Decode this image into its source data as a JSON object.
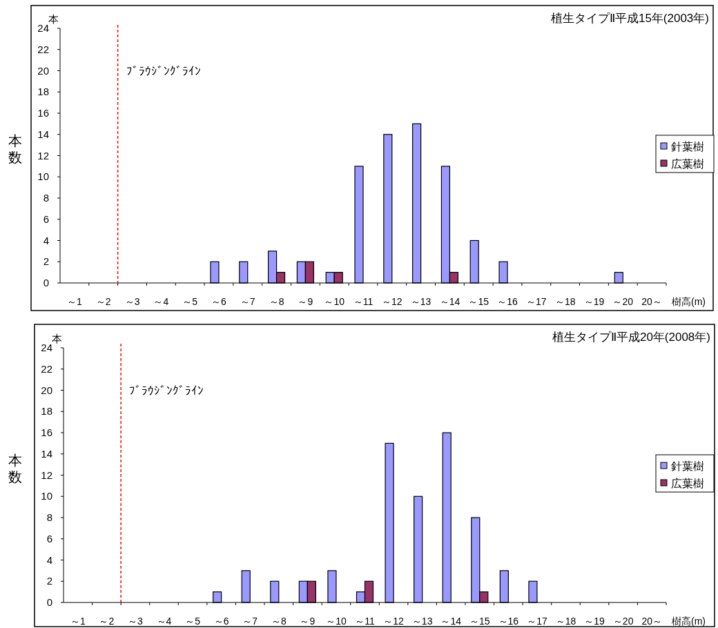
{
  "chart_data": [
    {
      "type": "bar",
      "title": "植生タイプⅡ平成15年(2003年)",
      "ylabel": "本数",
      "xlabel": "樹高(m)",
      "annotations": [
        "本"
      ],
      "categories": [
        "～1",
        "～2",
        "～3",
        "～4",
        "～5",
        "～6",
        "～7",
        "～8",
        "～9",
        "～10",
        "～11",
        "～12",
        "～13",
        "～14",
        "～15",
        "～16",
        "～17",
        "～18",
        "～19",
        "～20",
        "20～"
      ],
      "series": [
        {
          "name": "針葉樹",
          "color": "#9999ff",
          "values": [
            0,
            0,
            0,
            0,
            0,
            2,
            2,
            3,
            2,
            1,
            11,
            14,
            15,
            11,
            4,
            2,
            0,
            0,
            0,
            1,
            0
          ]
        },
        {
          "name": "広葉樹",
          "color": "#993366",
          "values": [
            0,
            0,
            0,
            0,
            0,
            0,
            0,
            1,
            2,
            1,
            0,
            0,
            0,
            1,
            0,
            0,
            0,
            0,
            0,
            0,
            0
          ]
        }
      ],
      "ylim": [
        0,
        24
      ],
      "yticks": [
        0,
        2,
        4,
        6,
        8,
        10,
        12,
        14,
        16,
        18,
        20,
        22,
        24
      ],
      "ref_lines": [
        {
          "axis": "x",
          "value": "～2",
          "label": "ﾌﾞﾗｳｼﾞﾝｸﾞﾗｲﾝ",
          "color": "#ff0000",
          "line_style": "dashed"
        }
      ],
      "legend": "right"
    },
    {
      "type": "bar",
      "title": "植生タイプⅡ平成20年(2008年)",
      "ylabel": "本数",
      "xlabel": "樹高(m)",
      "annotations": [
        "本"
      ],
      "categories": [
        "～1",
        "～2",
        "～3",
        "～4",
        "～5",
        "～6",
        "～7",
        "～8",
        "～9",
        "～10",
        "～11",
        "～12",
        "～13",
        "～14",
        "～15",
        "～16",
        "～17",
        "～18",
        "～19",
        "～20",
        "20～"
      ],
      "series": [
        {
          "name": "針葉樹",
          "color": "#9999ff",
          "values": [
            0,
            0,
            0,
            0,
            0,
            1,
            3,
            2,
            2,
            3,
            1,
            15,
            10,
            16,
            8,
            3,
            2,
            0,
            0,
            0,
            0
          ]
        },
        {
          "name": "広葉樹",
          "color": "#993366",
          "values": [
            0,
            0,
            0,
            0,
            0,
            0,
            0,
            0,
            2,
            0,
            2,
            0,
            0,
            0,
            1,
            0,
            0,
            0,
            0,
            0,
            0
          ]
        }
      ],
      "ylim": [
        0,
        24
      ],
      "yticks": [
        0,
        2,
        4,
        6,
        8,
        10,
        12,
        14,
        16,
        18,
        20,
        22,
        24
      ],
      "ref_lines": [
        {
          "axis": "x",
          "value": "～2",
          "label": "ﾌﾞﾗｳｼﾞﾝｸﾞﾗｲﾝ",
          "color": "#ff0000",
          "line_style": "dashed"
        }
      ],
      "legend": "right"
    }
  ]
}
